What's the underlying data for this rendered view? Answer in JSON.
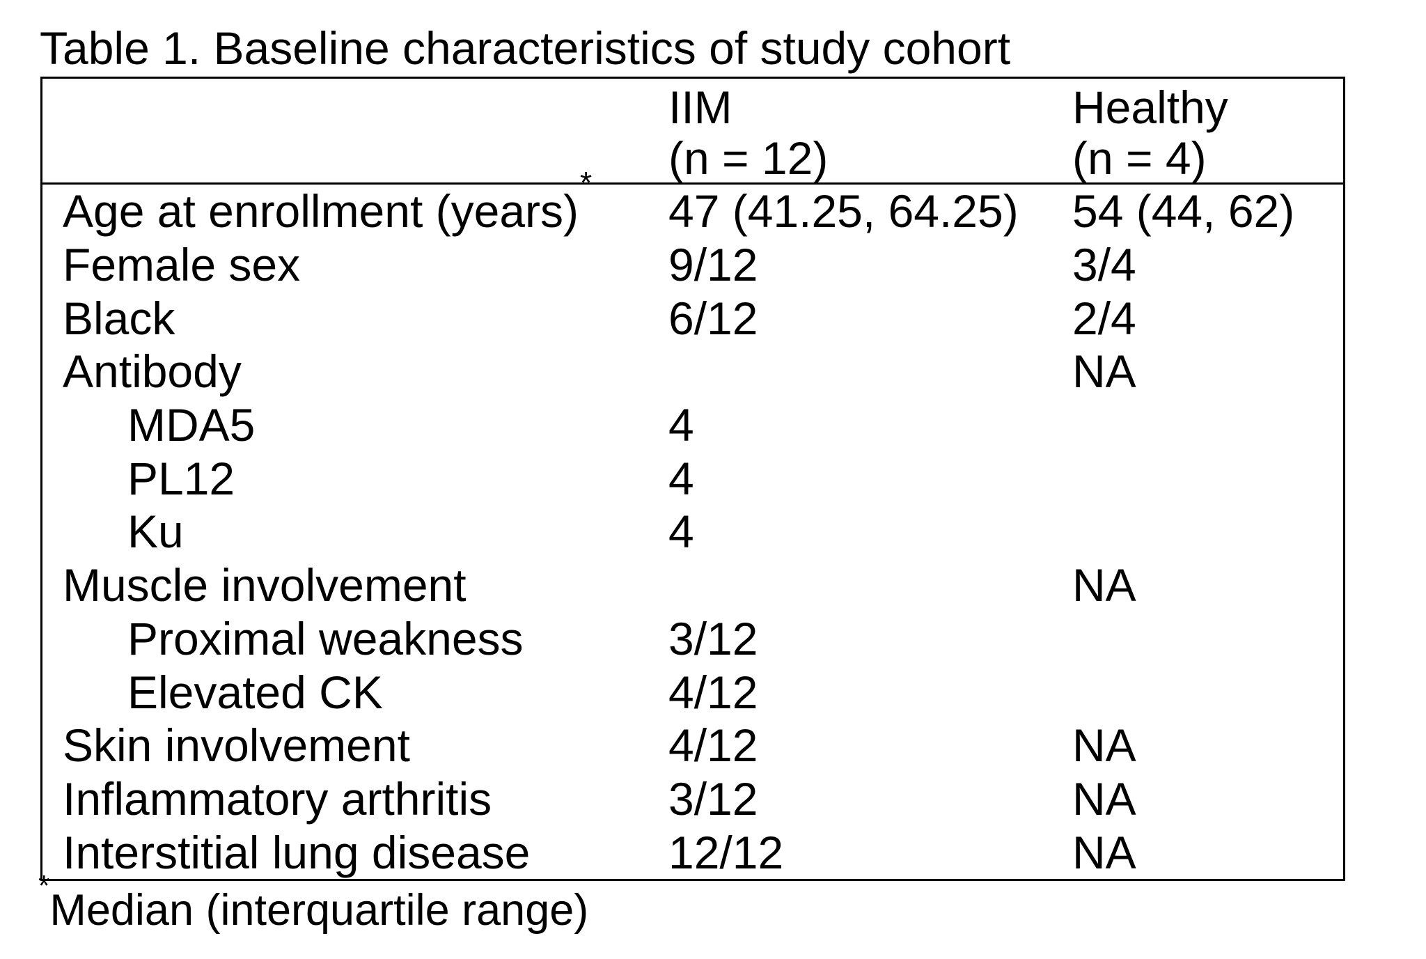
{
  "title": "Table 1. Baseline characteristics of study cohort",
  "table": {
    "columns": [
      {
        "name": "IIM",
        "n": "(n = 12)"
      },
      {
        "name": "Healthy",
        "n": "(n = 4)"
      }
    ],
    "rows": [
      {
        "label": "Age at enrollment (years)",
        "sup": "*",
        "indent": false,
        "iim": "47 (41.25, 64.25)",
        "healthy": "54 (44, 62)"
      },
      {
        "label": "Female sex",
        "indent": false,
        "iim": "9/12",
        "healthy": "3/4"
      },
      {
        "label": "Black",
        "indent": false,
        "iim": "6/12",
        "healthy": "2/4"
      },
      {
        "label": "Antibody",
        "indent": false,
        "iim": "",
        "healthy": "NA"
      },
      {
        "label": "MDA5",
        "indent": true,
        "iim": "4",
        "healthy": ""
      },
      {
        "label": "PL12",
        "indent": true,
        "iim": "4",
        "healthy": ""
      },
      {
        "label": "Ku",
        "indent": true,
        "iim": "4",
        "healthy": ""
      },
      {
        "label": "Muscle involvement",
        "indent": false,
        "iim": "",
        "healthy": "NA"
      },
      {
        "label": "Proximal weakness",
        "indent": true,
        "iim": "3/12",
        "healthy": ""
      },
      {
        "label": "Elevated CK",
        "indent": true,
        "iim": "4/12",
        "healthy": ""
      },
      {
        "label": "Skin involvement",
        "indent": false,
        "iim": "4/12",
        "healthy": "NA"
      },
      {
        "label": "Inflammatory arthritis",
        "indent": false,
        "iim": "3/12",
        "healthy": "NA"
      },
      {
        "label": "Interstitial lung disease",
        "indent": false,
        "iim": "12/12",
        "healthy": "NA"
      }
    ]
  },
  "footnote": {
    "symbol": "*",
    "text": "Median (interquartile range)"
  },
  "colors": {
    "text": "#000000",
    "background": "#ffffff",
    "border": "#000000"
  }
}
